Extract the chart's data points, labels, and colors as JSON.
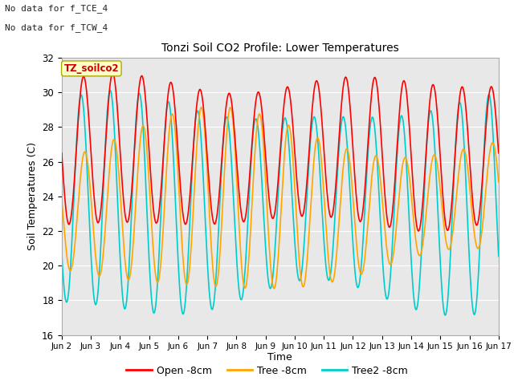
{
  "title": "Tonzi Soil CO2 Profile: Lower Temperatures",
  "ylabel": "Soil Temperatures (C)",
  "xlabel": "Time",
  "annotation_line1": "No data for f_TCE_4",
  "annotation_line2": "No data for f_TCW_4",
  "legend_label_text": "TZ_soilco2",
  "ylim": [
    16,
    32
  ],
  "xlim": [
    0,
    360
  ],
  "xtick_labels": [
    "Jun 2",
    "Jun 3",
    "Jun 4",
    "Jun 5",
    "Jun 6",
    "Jun 7",
    "Jun 8",
    "Jun 9",
    "Jun 10",
    "Jun 11",
    "Jun 12",
    "Jun 13",
    "Jun 14",
    "Jun 15",
    "Jun 16",
    "Jun 17"
  ],
  "ytick_values": [
    16,
    18,
    20,
    22,
    24,
    26,
    28,
    30,
    32
  ],
  "color_open": "#FF0000",
  "color_tree": "#FFA500",
  "color_tree2": "#00CCCC",
  "bg_color": "#E8E8E8",
  "legend_items": [
    "Open -8cm",
    "Tree -8cm",
    "Tree2 -8cm"
  ],
  "grid_color": "#FFFFFF",
  "spine_color": "#AAAAAA"
}
